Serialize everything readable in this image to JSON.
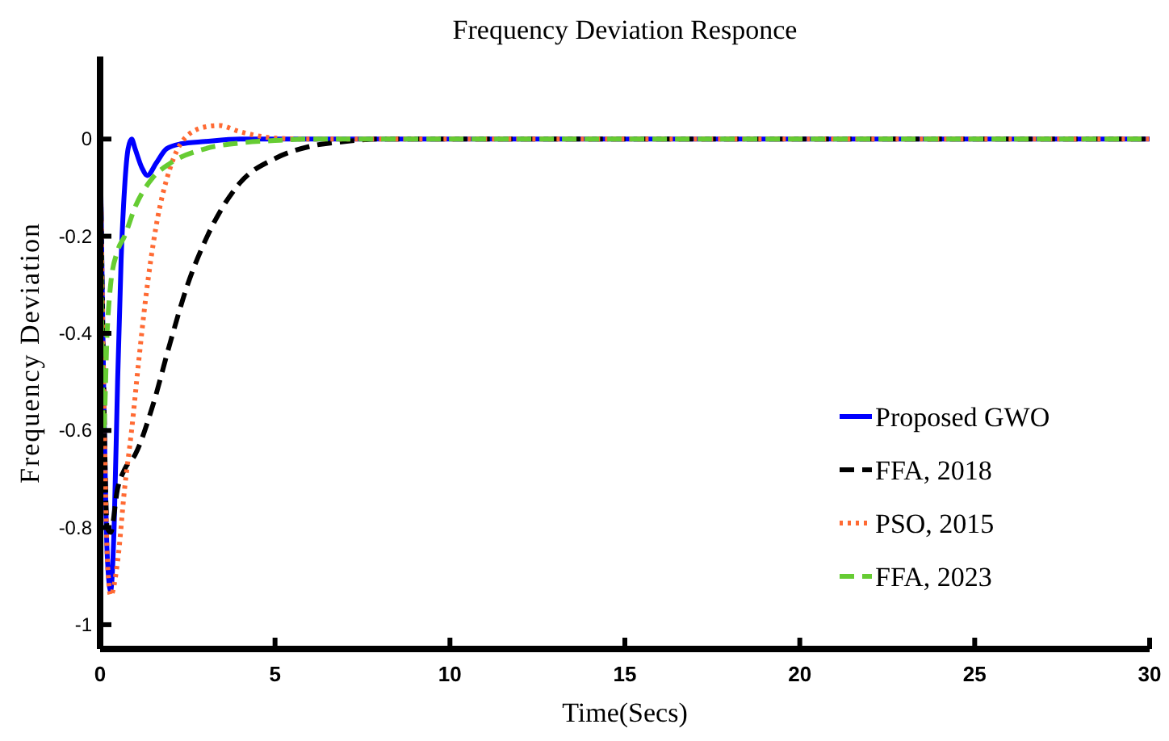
{
  "chart_data": {
    "type": "line",
    "title": "Frequency Deviation Responce",
    "xlabel": "Time(Secs)",
    "ylabel": "Frequency Deviation",
    "xlim": [
      0,
      30
    ],
    "ylim": [
      -1.05,
      0.17
    ],
    "xticks": [
      0,
      5,
      10,
      15,
      20,
      25,
      30
    ],
    "yticks": [
      0,
      -0.2,
      -0.4,
      -0.6,
      -0.8,
      -1
    ],
    "grid": false,
    "legend": "bottom right",
    "marker": "none",
    "series": [
      {
        "name": "Proposed GWO",
        "color": "#0000ff",
        "line_style": "solid",
        "x": [
          0,
          0.1,
          0.2,
          0.3,
          0.4,
          0.5,
          0.6,
          0.7,
          0.8,
          0.9,
          1.0,
          1.2,
          1.35,
          1.6,
          1.9,
          2.3,
          3,
          4,
          30
        ],
        "values": [
          0,
          -0.5,
          -0.85,
          -0.93,
          -0.8,
          -0.5,
          -0.25,
          -0.1,
          -0.02,
          0,
          -0.02,
          -0.06,
          -0.075,
          -0.05,
          -0.02,
          -0.01,
          -0.005,
          0,
          0
        ]
      },
      {
        "name": "FFA, 2018",
        "color": "#000000",
        "line_style": "dashed",
        "x": [
          0,
          0.1,
          0.2,
          0.3,
          0.5,
          0.7,
          1,
          1.5,
          2,
          2.5,
          3,
          4,
          5,
          6,
          7,
          8,
          30
        ],
        "values": [
          0,
          -0.5,
          -0.8,
          -0.81,
          -0.72,
          -0.68,
          -0.65,
          -0.55,
          -0.42,
          -0.3,
          -0.21,
          -0.09,
          -0.04,
          -0.015,
          -0.005,
          0,
          0
        ]
      },
      {
        "name": "PSO, 2015",
        "color": "#ff6a33",
        "line_style": "dotted",
        "x": [
          0,
          0.1,
          0.2,
          0.3,
          0.5,
          0.7,
          0.9,
          1.1,
          1.3,
          1.6,
          2,
          2.4,
          3,
          3.4,
          4,
          5,
          6,
          30
        ],
        "values": [
          0,
          -0.5,
          -0.85,
          -0.94,
          -0.87,
          -0.72,
          -0.6,
          -0.46,
          -0.33,
          -0.18,
          -0.06,
          0,
          0.025,
          0.028,
          0.015,
          0.002,
          0,
          0
        ]
      },
      {
        "name": "FFA, 2023",
        "color": "#66cc33",
        "line_style": "dashed",
        "x": [
          0,
          0.05,
          0.1,
          0.2,
          0.3,
          0.5,
          0.7,
          1,
          1.5,
          2,
          3,
          4,
          5,
          6,
          30
        ],
        "values": [
          0,
          -0.4,
          -0.6,
          -0.4,
          -0.3,
          -0.23,
          -0.2,
          -0.14,
          -0.08,
          -0.05,
          -0.02,
          -0.008,
          -0.003,
          0,
          0
        ]
      }
    ]
  }
}
